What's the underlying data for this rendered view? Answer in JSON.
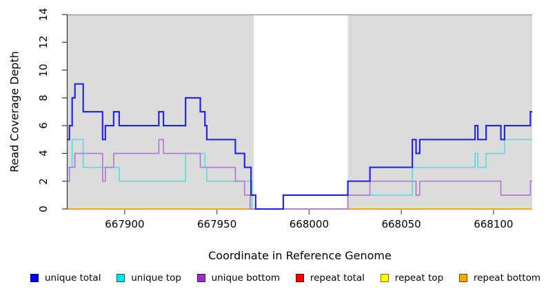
{
  "figure": {
    "y_axis": {
      "title": "Read Coverage Depth",
      "ticks": [
        0,
        2,
        4,
        6,
        8,
        10,
        12,
        14
      ],
      "min": 0,
      "max": 14
    },
    "x_axis": {
      "title": "Coordinate in Reference Genome",
      "ticks": [
        667900,
        667950,
        668000,
        668050,
        668100
      ],
      "min": 667869,
      "max": 668121
    },
    "shaded_regions": [
      {
        "from": 667869,
        "to": 667970
      },
      {
        "from": 668021,
        "to": 668121
      }
    ],
    "shade_color": "#DCDCDC",
    "top_border_color": "#8F8F8F",
    "axis_color": "#333333",
    "tick_color": "#555555"
  },
  "chart_data": {
    "type": "line",
    "step": true,
    "title": "",
    "xlabel": "Coordinate in Reference Genome",
    "ylabel": "Read Coverage Depth",
    "xlim": [
      667869,
      668121
    ],
    "ylim": [
      0,
      14
    ],
    "grid": false,
    "legend_position": "bottom",
    "series": [
      {
        "name": "unique total",
        "line_color": "#2626DE",
        "width": 2.2,
        "steps": [
          [
            667869,
            5
          ],
          [
            667870,
            6
          ],
          [
            667871.5,
            8
          ],
          [
            667873,
            9
          ],
          [
            667877.5,
            7
          ],
          [
            667888,
            5
          ],
          [
            667889.5,
            6
          ],
          [
            667894,
            7
          ],
          [
            667897,
            6
          ],
          [
            667918.5,
            7
          ],
          [
            667921,
            6
          ],
          [
            667933,
            8
          ],
          [
            667941,
            7
          ],
          [
            667943.5,
            6
          ],
          [
            667944.5,
            5
          ],
          [
            667960,
            4
          ],
          [
            667965,
            3
          ],
          [
            667968.5,
            1
          ],
          [
            667971,
            0
          ],
          [
            667986,
            1
          ],
          [
            668021,
            2
          ],
          [
            668033,
            3
          ],
          [
            668056,
            5
          ],
          [
            668058,
            4
          ],
          [
            668060,
            5
          ],
          [
            668090,
            6
          ],
          [
            668091.5,
            5
          ],
          [
            668096,
            6
          ],
          [
            668104,
            5
          ],
          [
            668106,
            6
          ],
          [
            668120,
            7
          ]
        ]
      },
      {
        "name": "unique top",
        "line_color": "#5ADDE0",
        "width": 1.7,
        "steps": [
          [
            667869,
            3
          ],
          [
            667871.5,
            5
          ],
          [
            667877.5,
            3
          ],
          [
            667897,
            2
          ],
          [
            667933,
            4
          ],
          [
            667943.5,
            3
          ],
          [
            667944.5,
            2
          ],
          [
            667969,
            0
          ],
          [
            668021,
            1
          ],
          [
            668056,
            3
          ],
          [
            668090,
            4
          ],
          [
            668091.5,
            3
          ],
          [
            668096,
            4
          ],
          [
            668106,
            5
          ]
        ]
      },
      {
        "name": "unique bottom",
        "line_color": "#B377D8",
        "width": 1.7,
        "steps": [
          [
            667869,
            2
          ],
          [
            667870,
            3
          ],
          [
            667873,
            4
          ],
          [
            667888,
            2
          ],
          [
            667889.5,
            3
          ],
          [
            667894,
            4
          ],
          [
            667918.5,
            5
          ],
          [
            667921,
            4
          ],
          [
            667941,
            3
          ],
          [
            667960,
            2
          ],
          [
            667965,
            1
          ],
          [
            667968,
            0
          ],
          [
            668021,
            1
          ],
          [
            668033,
            2
          ],
          [
            668058,
            1
          ],
          [
            668060,
            2
          ],
          [
            668104,
            1
          ],
          [
            668120,
            2
          ]
        ]
      },
      {
        "name": "repeat total",
        "line_color": "#E03030",
        "width": 1.7,
        "steps": [
          [
            667869,
            0
          ]
        ]
      },
      {
        "name": "repeat top",
        "line_color": "#EFEF30",
        "width": 1.7,
        "steps": [
          [
            667869,
            0
          ]
        ]
      },
      {
        "name": "repeat bottom",
        "line_color": "#FF9B1E",
        "width": 1.8,
        "segments": [
          [
            [
              667869,
              0
            ],
            [
              667970,
              0
            ]
          ],
          [
            [
              668021,
              0
            ],
            [
              668121,
              0
            ]
          ]
        ]
      }
    ],
    "render": {
      "gap_zero_overlap": {
        "note": "light-green zero line visible in unshaded gap (repeat top over unique top)",
        "from": 667970,
        "to": 668021,
        "value": 0,
        "color": "#8FDC8F",
        "width": 1.7
      },
      "draw_order": [
        "repeat total",
        "repeat top",
        "unique top",
        "__gap_overlap__",
        "repeat bottom",
        "unique bottom",
        "unique total"
      ]
    }
  },
  "legend": {
    "items": [
      {
        "label": "unique total",
        "color": "#0202F0"
      },
      {
        "label": "unique top",
        "color": "#00E6E6"
      },
      {
        "label": "unique bottom",
        "color": "#9F2BD1"
      },
      {
        "label": "repeat total",
        "color": "#F50000"
      },
      {
        "label": "repeat top",
        "color": "#FFFF00"
      },
      {
        "label": "repeat bottom",
        "color": "#FFA500"
      }
    ]
  }
}
